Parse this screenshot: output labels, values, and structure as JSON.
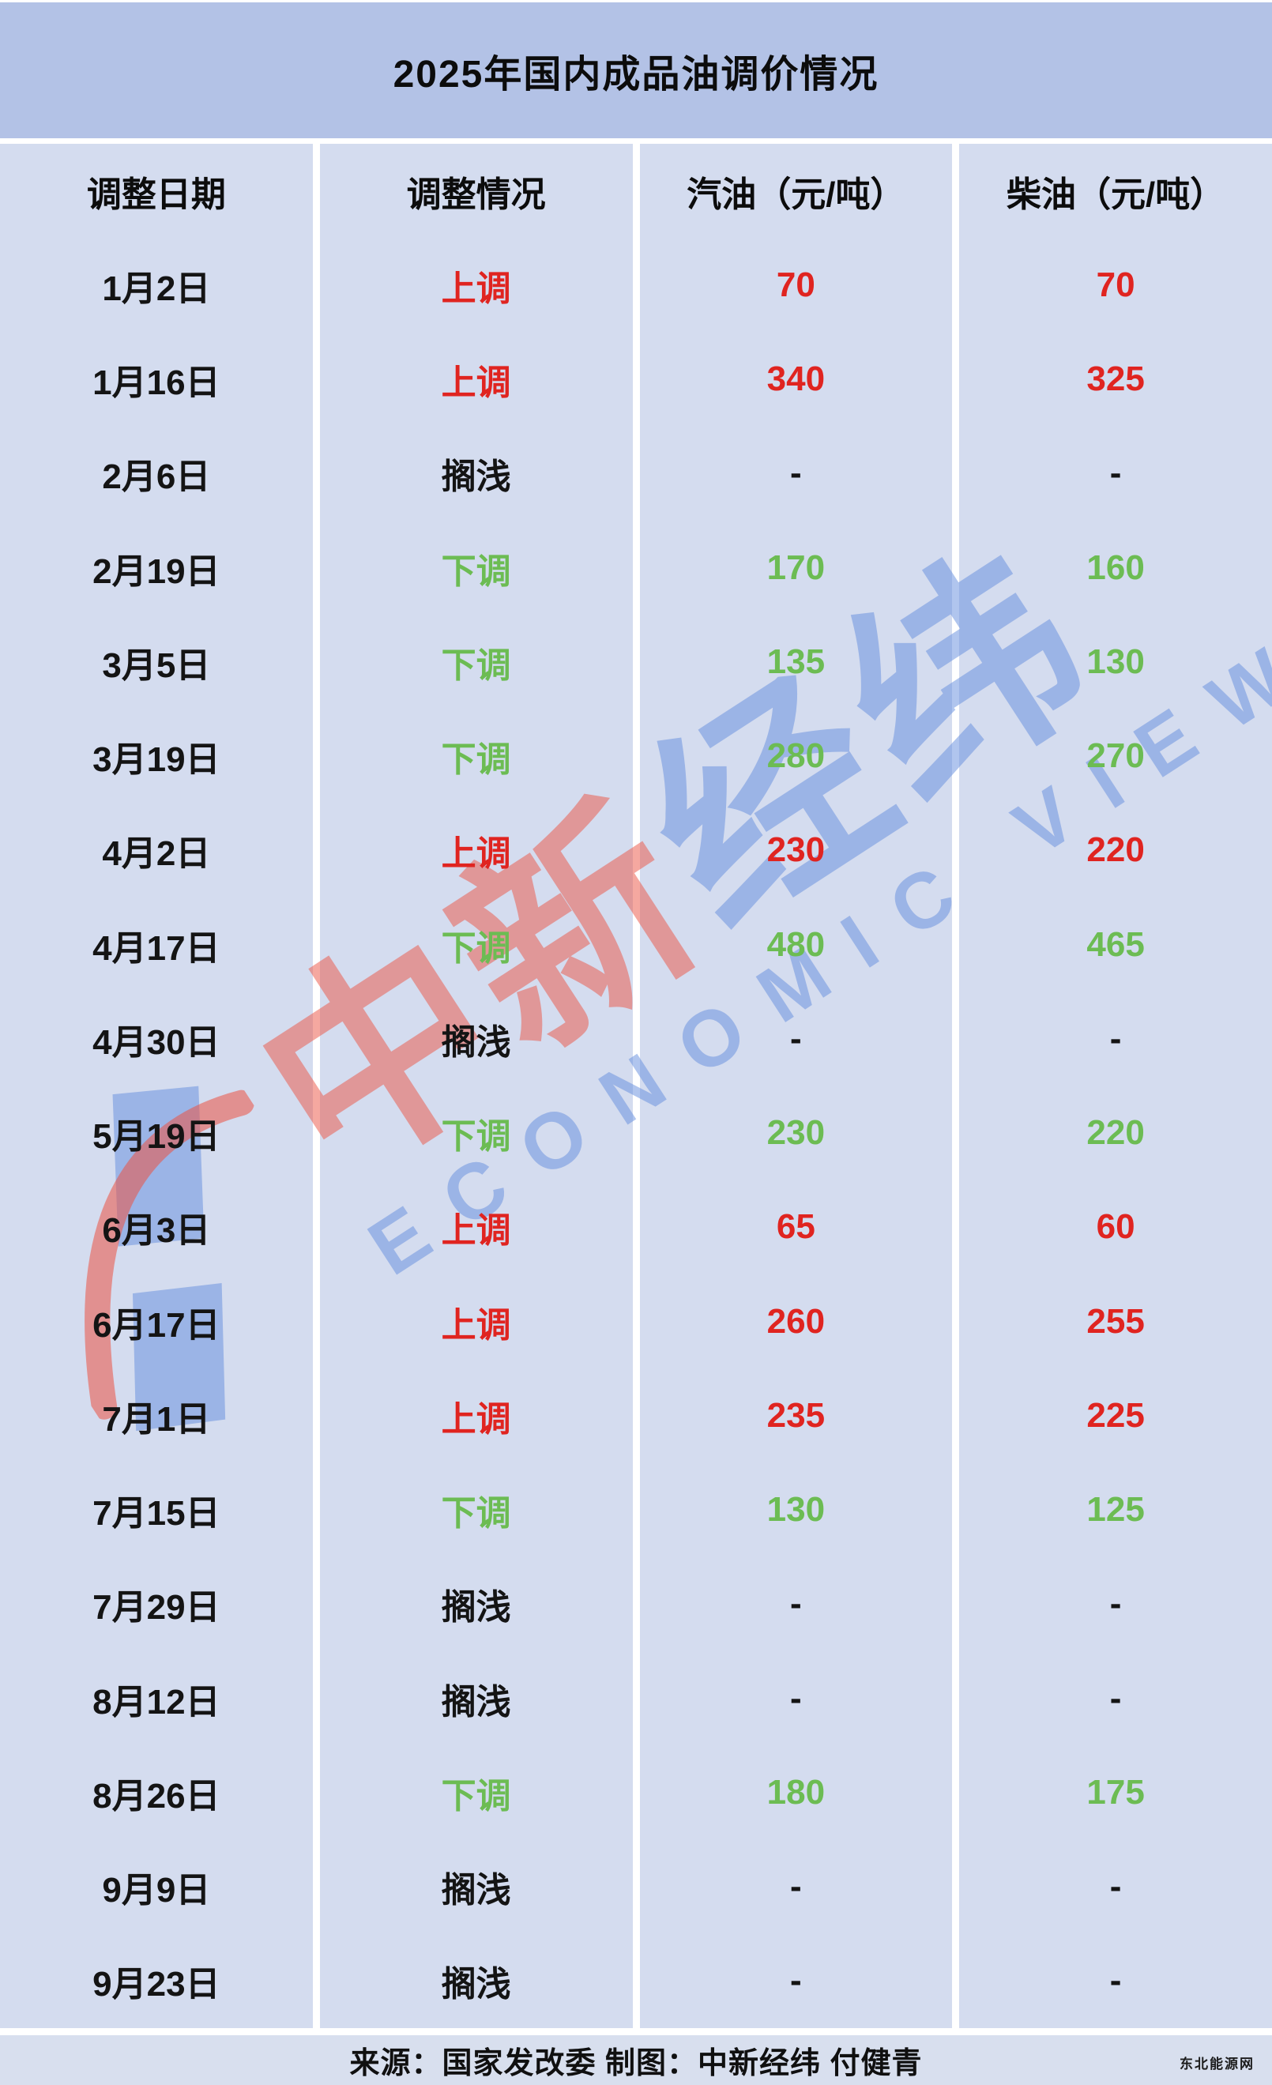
{
  "title": "2025年国内成品油调价情况",
  "chart_data": {
    "type": "table",
    "title": "2025年国内成品油调价情况",
    "columns": [
      "调整日期",
      "调整情况",
      "汽油（元/吨）",
      "柴油（元/吨）"
    ],
    "rows": [
      {
        "date": "1月2日",
        "status": "上调",
        "direction": "up",
        "gasoline": "70",
        "diesel": "70"
      },
      {
        "date": "1月16日",
        "status": "上调",
        "direction": "up",
        "gasoline": "340",
        "diesel": "325"
      },
      {
        "date": "2月6日",
        "status": "搁浅",
        "direction": "flat",
        "gasoline": "-",
        "diesel": "-"
      },
      {
        "date": "2月19日",
        "status": "下调",
        "direction": "down",
        "gasoline": "170",
        "diesel": "160"
      },
      {
        "date": "3月5日",
        "status": "下调",
        "direction": "down",
        "gasoline": "135",
        "diesel": "130"
      },
      {
        "date": "3月19日",
        "status": "下调",
        "direction": "down",
        "gasoline": "280",
        "diesel": "270"
      },
      {
        "date": "4月2日",
        "status": "上调",
        "direction": "up",
        "gasoline": "230",
        "diesel": "220"
      },
      {
        "date": "4月17日",
        "status": "下调",
        "direction": "down",
        "gasoline": "480",
        "diesel": "465"
      },
      {
        "date": "4月30日",
        "status": "搁浅",
        "direction": "flat",
        "gasoline": "-",
        "diesel": "-"
      },
      {
        "date": "5月19日",
        "status": "下调",
        "direction": "down",
        "gasoline": "230",
        "diesel": "220"
      },
      {
        "date": "6月3日",
        "status": "上调",
        "direction": "up",
        "gasoline": "65",
        "diesel": "60"
      },
      {
        "date": "6月17日",
        "status": "上调",
        "direction": "up",
        "gasoline": "260",
        "diesel": "255"
      },
      {
        "date": "7月1日",
        "status": "上调",
        "direction": "up",
        "gasoline": "235",
        "diesel": "225"
      },
      {
        "date": "7月15日",
        "status": "下调",
        "direction": "down",
        "gasoline": "130",
        "diesel": "125"
      },
      {
        "date": "7月29日",
        "status": "搁浅",
        "direction": "flat",
        "gasoline": "-",
        "diesel": "-"
      },
      {
        "date": "8月12日",
        "status": "搁浅",
        "direction": "flat",
        "gasoline": "-",
        "diesel": "-"
      },
      {
        "date": "8月26日",
        "status": "下调",
        "direction": "down",
        "gasoline": "180",
        "diesel": "175"
      },
      {
        "date": "9月9日",
        "status": "搁浅",
        "direction": "flat",
        "gasoline": "-",
        "diesel": "-"
      },
      {
        "date": "9月23日",
        "status": "搁浅",
        "direction": "flat",
        "gasoline": "-",
        "diesel": "-"
      }
    ],
    "legend_position": "none",
    "grid": false
  },
  "footer": {
    "credit": "来源：国家发改委 制图：中新经纬 付健青",
    "corner_watermark": "东北能源网"
  },
  "watermark": {
    "logo": "zhongxin-jingwei-logo",
    "cn_red": "中新",
    "cn_blue": "经纬",
    "en": "ECONOMIC VIEW"
  },
  "colors": {
    "up": "#e02420",
    "down": "#6cbc53",
    "neutral": "#141414",
    "title_band_bg": "#b3c2e6",
    "cell_bg": "#d4dcef",
    "footer_bg": "#d8dfee",
    "watermark_red": "rgba(235,82,66,0.5)",
    "watermark_blue": "rgba(98,140,221,0.5)"
  }
}
